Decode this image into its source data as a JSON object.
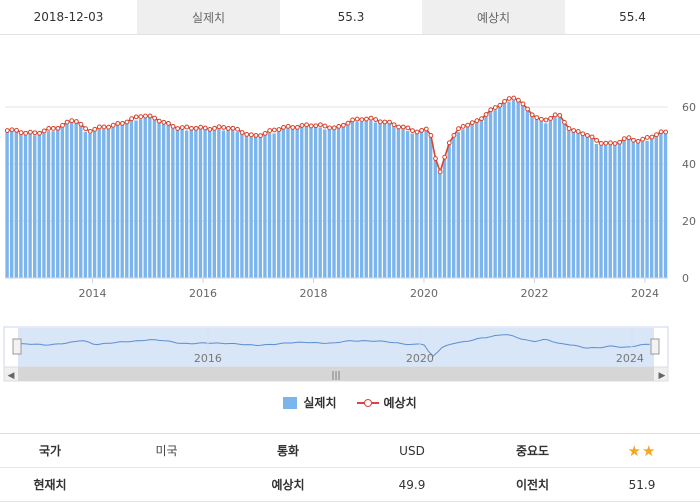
{
  "topbar": {
    "date": "2018-12-03",
    "actual_label": "실제치",
    "actual_value": "55.3",
    "forecast_label": "예상치",
    "forecast_value": "55.4"
  },
  "chart_data": {
    "type": "bar",
    "series": [
      {
        "name": "실제치",
        "kind": "bar",
        "color": "#7cb5ec"
      },
      {
        "name": "예상치",
        "kind": "line",
        "color": "#d9422b"
      }
    ],
    "x_ticks": [
      "2014",
      "2016",
      "2018",
      "2020",
      "2022",
      "2024"
    ],
    "y_ticks": [
      "0",
      "20",
      "40",
      "60"
    ],
    "ylim": [
      0,
      60
    ],
    "x_range": [
      "2012-06",
      "2024-06"
    ],
    "control_points": [
      [
        "2012-06",
        51.5
      ],
      [
        "2013-01",
        50.5
      ],
      [
        "2013-06",
        52.5
      ],
      [
        "2013-09",
        55.8
      ],
      [
        "2013-12",
        51.0
      ],
      [
        "2014-06",
        53.5
      ],
      [
        "2014-12",
        56.5
      ],
      [
        "2015-03",
        55.5
      ],
      [
        "2015-08",
        52.0
      ],
      [
        "2016-06",
        52.5
      ],
      [
        "2016-12",
        49.5
      ],
      [
        "2017-06",
        52.0
      ],
      [
        "2017-12",
        53.5
      ],
      [
        "2018-06",
        52.0
      ],
      [
        "2018-09",
        55.0
      ],
      [
        "2018-12",
        55.5
      ],
      [
        "2019-06",
        54.0
      ],
      [
        "2019-12",
        50.5
      ],
      [
        "2020-02",
        52.0
      ],
      [
        "2020-03",
        48.0
      ],
      [
        "2020-04",
        35.5
      ],
      [
        "2020-05",
        38.0
      ],
      [
        "2020-06",
        46.5
      ],
      [
        "2020-09",
        52.5
      ],
      [
        "2020-12",
        54.0
      ],
      [
        "2021-03",
        58.0
      ],
      [
        "2021-06",
        61.0
      ],
      [
        "2021-09",
        63.0
      ],
      [
        "2021-12",
        58.0
      ],
      [
        "2022-03",
        54.5
      ],
      [
        "2022-06",
        57.0
      ],
      [
        "2022-09",
        51.5
      ],
      [
        "2022-12",
        50.5
      ],
      [
        "2023-03",
        47.0
      ],
      [
        "2023-06",
        46.5
      ],
      [
        "2023-09",
        49.0
      ],
      [
        "2023-12",
        47.5
      ],
      [
        "2024-03",
        49.5
      ],
      [
        "2024-05",
        51.0
      ]
    ],
    "navigator_ticks": [
      "2016",
      "2020",
      "2024"
    ]
  },
  "legend": {
    "actual": "실제치",
    "forecast": "예상치"
  },
  "info": {
    "country_label": "국가",
    "country_value": "미국",
    "currency_label": "통화",
    "currency_value": "USD",
    "importance_label": "중요도",
    "importance_stars": "★★",
    "current_label": "현재치",
    "current_value": "",
    "forecast_label": "예상치",
    "forecast_value": "49.9",
    "previous_label": "이전치",
    "previous_value": "51.9"
  }
}
